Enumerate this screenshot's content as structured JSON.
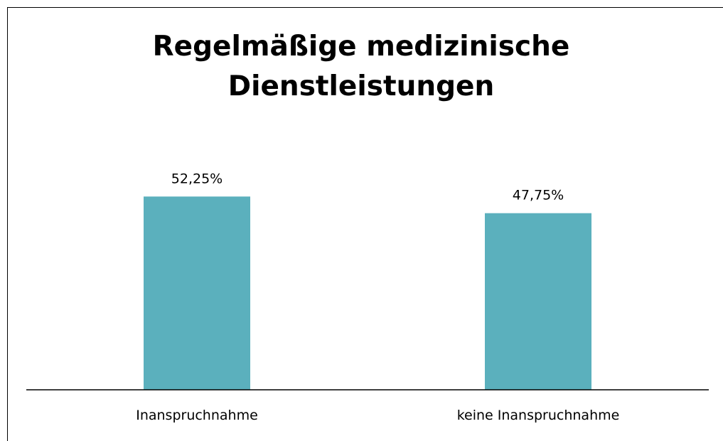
{
  "chart_data": {
    "type": "bar",
    "title": "Regelmäßige medizinische Dienstleistungen",
    "categories": [
      "Inanspruchnahme",
      "keine Inanspruchnahme"
    ],
    "values": [
      52.25,
      47.75
    ],
    "value_labels": [
      "52,25%",
      "47,75%"
    ],
    "color": "#5bb0bd",
    "ylim": [
      0,
      60
    ]
  }
}
